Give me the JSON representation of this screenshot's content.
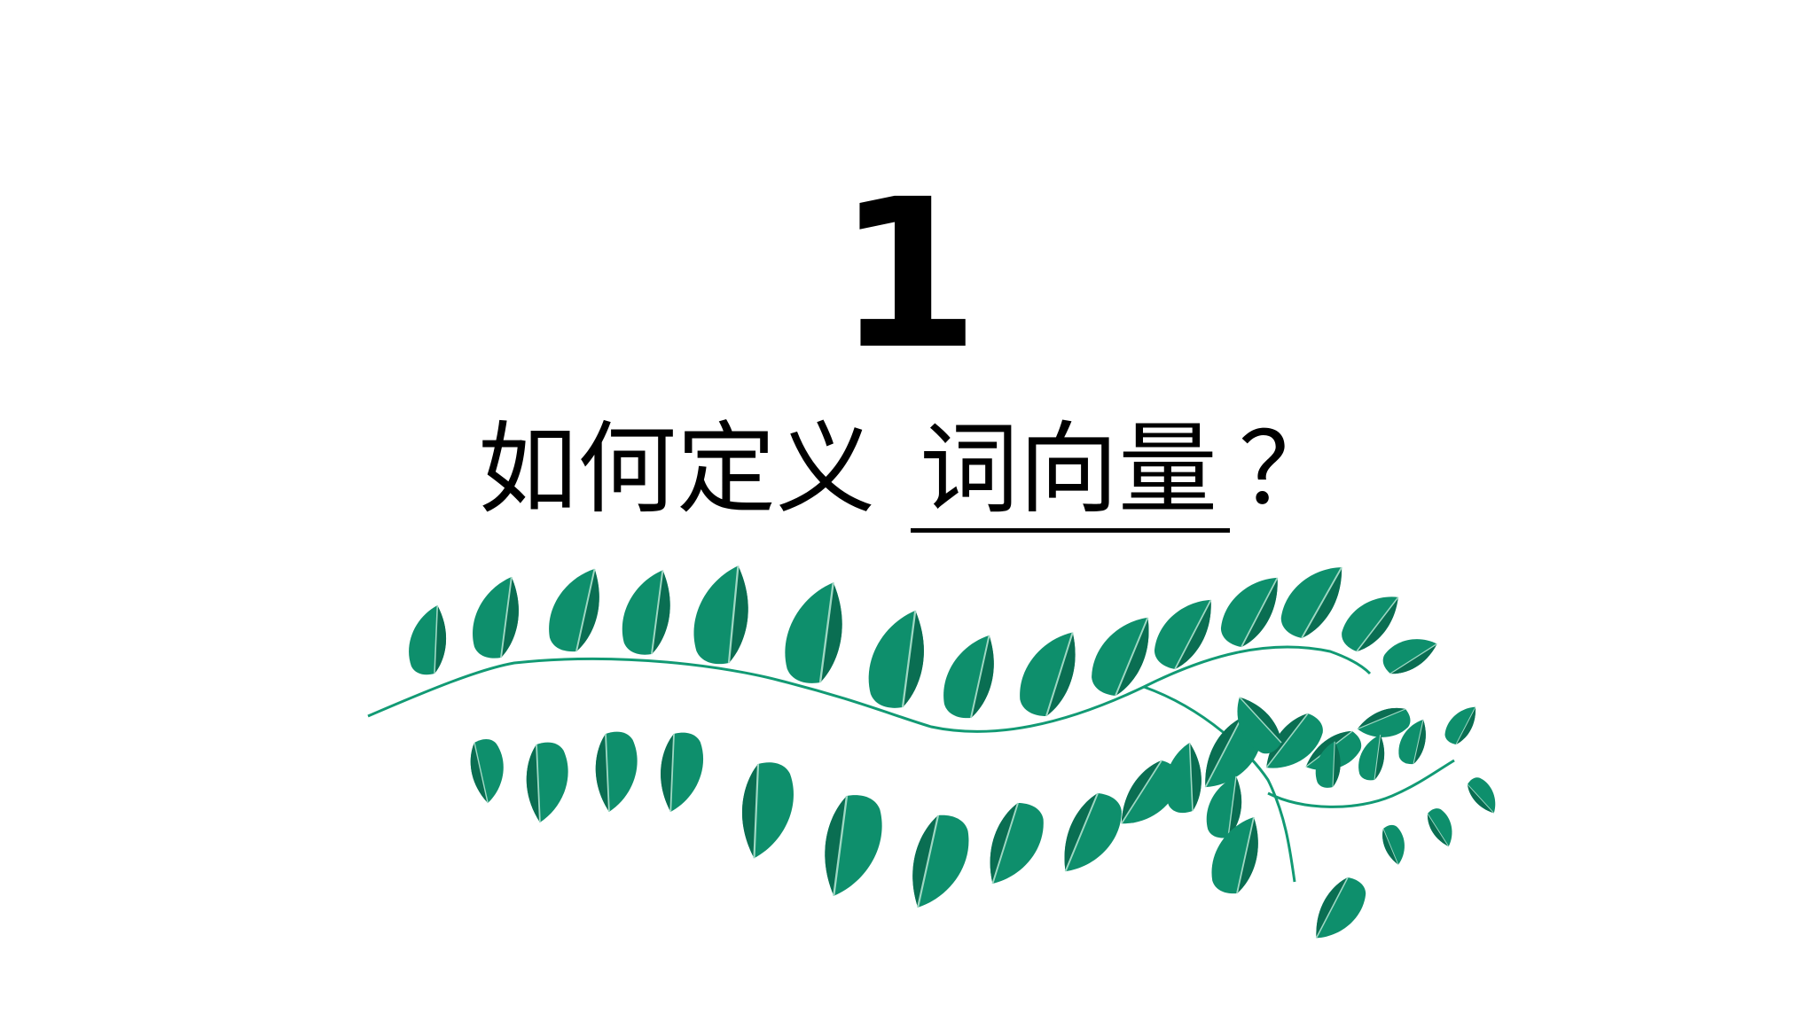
{
  "slide": {
    "section_number": "1",
    "title_prefix": "如何定义",
    "title_keyword": "词向量",
    "title_suffix": "？"
  },
  "decoration": {
    "leaf_color": "#0e8f6c",
    "leaf_shadow_color": "#0a6e52",
    "stem_color": "#129a74"
  }
}
